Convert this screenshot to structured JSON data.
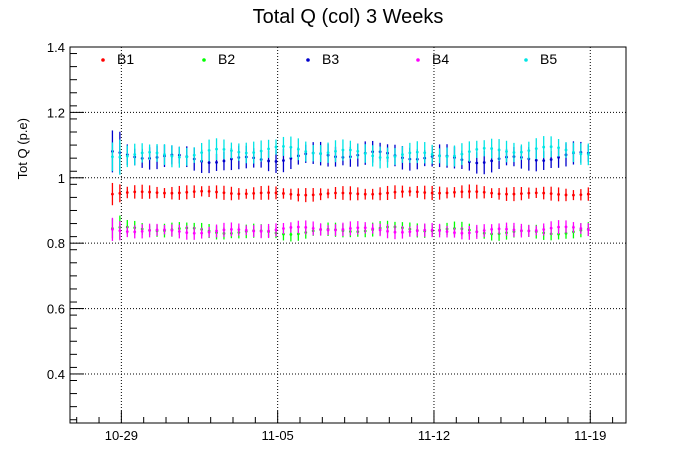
{
  "chart_data": {
    "type": "scatter",
    "title": "Total Q (col) 3 Weeks",
    "xlabel": "",
    "ylabel": "Tot Q (p.e)",
    "x_tick_labels": [
      "10-29",
      "11-05",
      "11-12",
      "11-19"
    ],
    "x_tick_days": [
      0,
      7,
      14,
      21
    ],
    "xlim_days": [
      -2.3,
      22.6
    ],
    "ylim": [
      0.25,
      1.4
    ],
    "y_ticks": [
      0.4,
      0.6,
      0.8,
      1,
      1.2,
      1.4
    ],
    "grid": true,
    "legend_placement": "top",
    "series": [
      {
        "name": "B1",
        "color": "#ff0000",
        "base": 0.953,
        "amp": 0.006,
        "err": 0.018
      },
      {
        "name": "B2",
        "color": "#00ff00",
        "base": 0.838,
        "amp": 0.012,
        "err": 0.018
      },
      {
        "name": "B3",
        "color": "#0000cc",
        "base": 1.063,
        "amp": 0.018,
        "err": 0.03
      },
      {
        "name": "B4",
        "color": "#ff00ff",
        "base": 0.84,
        "amp": 0.01,
        "err": 0.018
      },
      {
        "name": "B5",
        "color": "#00e5e5",
        "base": 1.078,
        "amp": 0.018,
        "err": 0.028
      }
    ],
    "time_span_days": [
      -0.4,
      21.1
    ],
    "time_step_days": 0.333
  }
}
